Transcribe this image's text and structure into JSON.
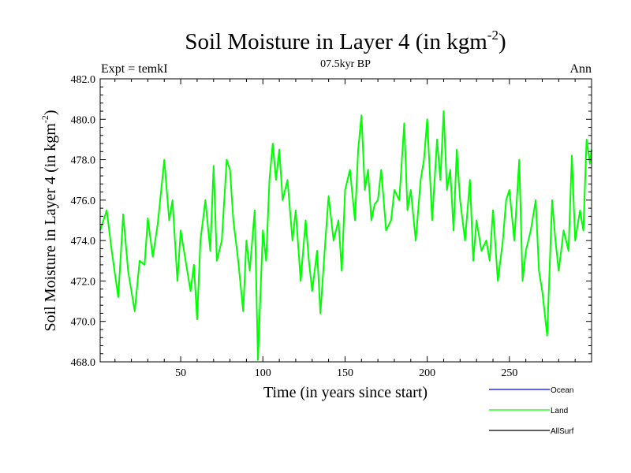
{
  "chart_data": {
    "type": "line",
    "title": "Soil Moisture in Layer 4 (in kgm",
    "title_sup": "-2",
    "title_close": ")",
    "subtitle": "07.5kyr BP",
    "left_label": "Expt = temkI",
    "right_label": "Ann",
    "xlabel": "Time (in years since start)",
    "ylabel": "Soil Moisture in Layer 4 (in kgm",
    "ylabel_sup": "-2",
    "ylabel_close": ")",
    "xlim": [
      1,
      300
    ],
    "ylim": [
      468,
      482
    ],
    "xticks": [
      50,
      100,
      150,
      200,
      250
    ],
    "yticks": [
      468.0,
      470.0,
      472.0,
      474.0,
      476.0,
      478.0,
      480.0,
      482.0
    ],
    "ytick_labels": [
      "468.0",
      "470.0",
      "472.0",
      "474.0",
      "476.0",
      "478.0",
      "480.0",
      "482.0"
    ],
    "legend": [
      {
        "name": "Ocean",
        "color": "#0000ff"
      },
      {
        "name": "Land",
        "color": "#00ff00"
      },
      {
        "name": "AllSurf",
        "color": "#000000"
      }
    ],
    "series": [
      {
        "name": "Land",
        "color": "#00ff00",
        "x": [
          1,
          5,
          8,
          12,
          15,
          18,
          22,
          25,
          28,
          30,
          33,
          36,
          40,
          43,
          45,
          48,
          50,
          53,
          56,
          58,
          60,
          62,
          65,
          68,
          70,
          72,
          75,
          78,
          80,
          82,
          85,
          88,
          90,
          92,
          95,
          97,
          100,
          102,
          104,
          106,
          108,
          110,
          112,
          115,
          118,
          120,
          123,
          126,
          128,
          130,
          133,
          135,
          138,
          140,
          143,
          146,
          148,
          150,
          153,
          156,
          158,
          160,
          162,
          164,
          166,
          168,
          170,
          172,
          175,
          178,
          180,
          183,
          186,
          188,
          190,
          193,
          196,
          198,
          200,
          203,
          206,
          208,
          210,
          212,
          214,
          216,
          218,
          220,
          223,
          226,
          228,
          230,
          233,
          236,
          238,
          240,
          243,
          246,
          248,
          250,
          253,
          256,
          258,
          260,
          263,
          266,
          268,
          270,
          273,
          276,
          278,
          280,
          283,
          286,
          288,
          290,
          293,
          295,
          297,
          299,
          300
        ],
        "values": [
          474.5,
          475.5,
          473.5,
          471.2,
          475.3,
          472.5,
          470.5,
          473.0,
          472.8,
          475.1,
          473.2,
          474.8,
          478.0,
          475.0,
          476.0,
          472.0,
          474.5,
          473.0,
          471.5,
          472.8,
          470.1,
          474.0,
          476.0,
          473.5,
          477.7,
          473.0,
          474.0,
          478.0,
          477.5,
          475.0,
          473.0,
          470.5,
          474.0,
          472.5,
          475.5,
          468.1,
          474.5,
          473.0,
          477.0,
          478.8,
          477.0,
          478.5,
          476.0,
          477.0,
          474.0,
          475.5,
          472.0,
          475.0,
          473.0,
          471.5,
          473.5,
          470.4,
          474.0,
          476.2,
          474.0,
          475.0,
          472.5,
          476.5,
          477.5,
          475.0,
          478.5,
          480.2,
          476.5,
          477.5,
          475.0,
          475.8,
          476.0,
          477.5,
          474.5,
          475.0,
          476.5,
          476.0,
          479.8,
          475.5,
          476.5,
          474.0,
          477.0,
          478.0,
          480.0,
          475.0,
          479.0,
          477.0,
          480.4,
          476.5,
          477.5,
          474.5,
          478.5,
          476.0,
          474.0,
          477.0,
          473.0,
          475.0,
          473.5,
          474.0,
          473.0,
          475.5,
          472.0,
          474.0,
          476.0,
          476.5,
          474.0,
          478.0,
          472.0,
          473.5,
          474.5,
          476.0,
          472.5,
          471.5,
          469.3,
          476.0,
          474.0,
          472.5,
          474.5,
          473.5,
          478.2,
          474.0,
          475.5,
          474.5,
          479.0,
          477.8,
          478.5
        ]
      }
    ]
  }
}
